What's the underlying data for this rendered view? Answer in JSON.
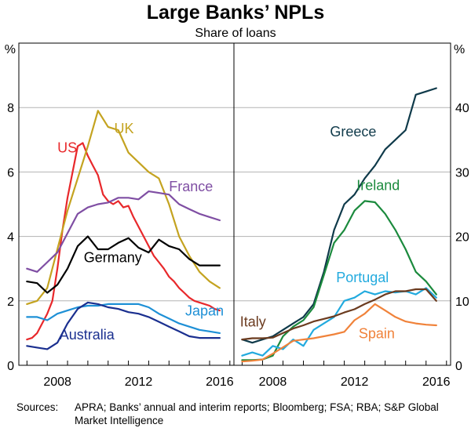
{
  "title": "Large Banks’ NPLs",
  "subtitle": "Share of loans",
  "sources": {
    "label": "Sources:",
    "text": "APRA; Banks’ annual and interim reports; Bloomberg; FSA; RBA; S&P Global Market Intelligence"
  },
  "colors": {
    "US": "#e8282b",
    "UK": "#c4a320",
    "France": "#7f4ea3",
    "Germany": "#000000",
    "Japan": "#1e90d6",
    "Australia": "#1a2f8f",
    "Greece": "#0f3a4a",
    "Ireland": "#1b8a3d",
    "Portugal": "#22aade",
    "Italy": "#6b3b1f",
    "Spain": "#f0823a"
  },
  "chart_data": [
    {
      "type": "line",
      "panel": "left",
      "ylabel": "%",
      "ylim": [
        0,
        10
      ],
      "yticks": [
        0,
        2,
        4,
        6,
        8
      ],
      "xlim": [
        2006.6,
        2017.2
      ],
      "xticks": [
        2008,
        2012,
        2016
      ],
      "series": [
        {
          "name": "US",
          "label": "US",
          "x": [
            2007.0,
            2007.25,
            2007.5,
            2007.75,
            2008.0,
            2008.25,
            2008.5,
            2008.75,
            2009.0,
            2009.25,
            2009.5,
            2009.75,
            2010.0,
            2010.25,
            2010.5,
            2010.75,
            2011.0,
            2011.25,
            2011.5,
            2011.75,
            2012.0,
            2012.25,
            2012.5,
            2012.75,
            2013.0,
            2013.25,
            2013.5,
            2013.75,
            2014.0,
            2014.25,
            2014.5,
            2014.75,
            2015.0,
            2015.25,
            2015.5,
            2015.75,
            2016.0,
            2016.25,
            2016.5
          ],
          "y": [
            0.8,
            0.85,
            1.0,
            1.3,
            1.6,
            2.0,
            3.0,
            4.2,
            5.2,
            6.0,
            6.8,
            6.9,
            6.5,
            6.2,
            5.9,
            5.3,
            5.1,
            5.0,
            5.1,
            4.9,
            4.95,
            4.6,
            4.3,
            4.0,
            3.7,
            3.4,
            3.2,
            3.0,
            2.75,
            2.6,
            2.4,
            2.25,
            2.1,
            2.0,
            1.95,
            1.9,
            1.85,
            1.75,
            1.7
          ]
        },
        {
          "name": "UK",
          "label": "UK",
          "x": [
            2007.0,
            2007.5,
            2008.0,
            2008.5,
            2009.0,
            2009.5,
            2010.0,
            2010.5,
            2011.0,
            2011.5,
            2012.0,
            2012.5,
            2013.0,
            2013.5,
            2014.0,
            2014.5,
            2015.0,
            2015.5,
            2016.0,
            2016.5
          ],
          "y": [
            1.9,
            2.0,
            2.4,
            3.6,
            4.8,
            5.8,
            6.8,
            7.9,
            7.4,
            7.3,
            6.6,
            6.3,
            6.0,
            5.8,
            5.0,
            4.0,
            3.4,
            2.9,
            2.6,
            2.4
          ]
        },
        {
          "name": "France",
          "label": "France",
          "x": [
            2007.0,
            2007.5,
            2008.0,
            2008.5,
            2009.0,
            2009.5,
            2010.0,
            2010.5,
            2011.0,
            2011.5,
            2012.0,
            2012.5,
            2013.0,
            2013.5,
            2014.0,
            2014.5,
            2015.0,
            2015.5,
            2016.0,
            2016.5
          ],
          "y": [
            3.0,
            2.9,
            3.2,
            3.5,
            4.1,
            4.7,
            4.9,
            5.0,
            5.05,
            5.2,
            5.2,
            5.15,
            5.4,
            5.35,
            5.3,
            5.0,
            4.85,
            4.7,
            4.6,
            4.5
          ]
        },
        {
          "name": "Germany",
          "label": "Germany",
          "x": [
            2007.0,
            2007.5,
            2008.0,
            2008.5,
            2009.0,
            2009.5,
            2010.0,
            2010.5,
            2011.0,
            2011.5,
            2012.0,
            2012.5,
            2013.0,
            2013.5,
            2014.0,
            2014.5,
            2015.0,
            2015.5,
            2016.0,
            2016.5
          ],
          "y": [
            2.6,
            2.55,
            2.25,
            2.5,
            3.0,
            3.7,
            4.0,
            3.6,
            3.6,
            3.8,
            3.95,
            3.65,
            3.5,
            3.9,
            3.7,
            3.6,
            3.3,
            3.1,
            3.1,
            3.1
          ]
        },
        {
          "name": "Japan",
          "label": "Japan",
          "x": [
            2007.0,
            2007.5,
            2008.0,
            2008.5,
            2009.0,
            2009.5,
            2010.0,
            2010.5,
            2011.0,
            2011.5,
            2012.0,
            2012.5,
            2013.0,
            2013.5,
            2014.0,
            2014.5,
            2015.0,
            2015.5,
            2016.0,
            2016.5
          ],
          "y": [
            1.5,
            1.5,
            1.4,
            1.6,
            1.7,
            1.8,
            1.85,
            1.85,
            1.9,
            1.9,
            1.9,
            1.9,
            1.8,
            1.6,
            1.45,
            1.3,
            1.2,
            1.1,
            1.05,
            1.0
          ]
        },
        {
          "name": "Australia",
          "label": "Australia",
          "x": [
            2007.0,
            2007.5,
            2008.0,
            2008.5,
            2009.0,
            2009.5,
            2010.0,
            2010.5,
            2011.0,
            2011.5,
            2012.0,
            2012.5,
            2013.0,
            2013.5,
            2014.0,
            2014.5,
            2015.0,
            2015.5,
            2016.0,
            2016.5
          ],
          "y": [
            0.6,
            0.55,
            0.5,
            0.7,
            1.3,
            1.75,
            1.95,
            1.9,
            1.8,
            1.75,
            1.65,
            1.6,
            1.5,
            1.35,
            1.2,
            1.05,
            0.9,
            0.85,
            0.85,
            0.85
          ]
        }
      ]
    },
    {
      "type": "line",
      "panel": "right",
      "ylabel": "%",
      "ylim": [
        0,
        50
      ],
      "yticks": [
        0,
        10,
        20,
        30,
        40
      ],
      "xlim": [
        2006.6,
        2017.2
      ],
      "xticks": [
        2008,
        2012,
        2016
      ],
      "series": [
        {
          "name": "Greece",
          "label": "Greece",
          "x": [
            2007.0,
            2007.5,
            2008.0,
            2008.5,
            2009.0,
            2009.5,
            2010.0,
            2010.5,
            2011.0,
            2011.5,
            2012.0,
            2012.5,
            2013.0,
            2013.5,
            2014.0,
            2014.5,
            2015.0,
            2015.5,
            2016.0,
            2016.5
          ],
          "y": [
            4.0,
            3.5,
            4.0,
            4.5,
            5.5,
            6.5,
            7.5,
            9.5,
            14.5,
            21.0,
            25.0,
            26.5,
            29.0,
            31.0,
            33.5,
            35.0,
            36.5,
            42.0,
            42.5,
            43.0
          ]
        },
        {
          "name": "Ireland",
          "label": "Ireland",
          "x": [
            2007.0,
            2007.5,
            2008.0,
            2008.5,
            2009.0,
            2009.5,
            2010.0,
            2010.5,
            2011.0,
            2011.5,
            2012.0,
            2012.5,
            2013.0,
            2013.5,
            2014.0,
            2014.5,
            2015.0,
            2015.5,
            2016.0,
            2016.5
          ],
          "y": [
            0.8,
            0.8,
            0.9,
            1.5,
            4.5,
            6.0,
            7.0,
            9.0,
            14.0,
            19.0,
            21.0,
            24.0,
            25.5,
            25.3,
            23.5,
            21.0,
            18.0,
            14.5,
            13.0,
            11.0
          ]
        },
        {
          "name": "Portugal",
          "label": "Portugal",
          "x": [
            2007.0,
            2007.5,
            2008.0,
            2008.5,
            2009.0,
            2009.5,
            2010.0,
            2010.5,
            2011.0,
            2011.5,
            2012.0,
            2012.5,
            2013.0,
            2013.5,
            2014.0,
            2014.5,
            2015.0,
            2015.5,
            2016.0,
            2016.5
          ],
          "y": [
            1.5,
            2.0,
            1.5,
            3.0,
            2.5,
            4.0,
            3.0,
            5.5,
            6.5,
            7.5,
            10.0,
            10.5,
            11.5,
            11.0,
            11.5,
            11.3,
            11.5,
            11.0,
            12.0,
            10.5
          ]
        },
        {
          "name": "Italy",
          "label": "Italy",
          "x": [
            2007.0,
            2007.5,
            2008.0,
            2008.5,
            2009.0,
            2009.5,
            2010.0,
            2010.5,
            2011.0,
            2011.5,
            2012.0,
            2012.5,
            2013.0,
            2013.5,
            2014.0,
            2014.5,
            2015.0,
            2015.5,
            2016.0,
            2016.5
          ],
          "y": [
            4.0,
            4.2,
            4.2,
            4.3,
            5.0,
            5.7,
            6.2,
            6.8,
            7.2,
            7.6,
            8.2,
            8.7,
            9.5,
            10.2,
            11.0,
            11.5,
            11.5,
            11.8,
            11.8,
            10.0
          ]
        },
        {
          "name": "Spain",
          "label": "Spain",
          "x": [
            2007.0,
            2007.5,
            2008.0,
            2008.5,
            2009.0,
            2009.5,
            2010.0,
            2010.5,
            2011.0,
            2011.5,
            2012.0,
            2012.5,
            2013.0,
            2013.5,
            2014.0,
            2014.5,
            2015.0,
            2015.5,
            2016.0,
            2016.5
          ],
          "y": [
            0.6,
            0.7,
            0.9,
            1.8,
            2.8,
            3.8,
            4.0,
            4.2,
            4.5,
            4.8,
            5.2,
            7.0,
            8.0,
            9.5,
            8.5,
            7.5,
            6.8,
            6.5,
            6.3,
            6.2
          ]
        }
      ]
    }
  ]
}
